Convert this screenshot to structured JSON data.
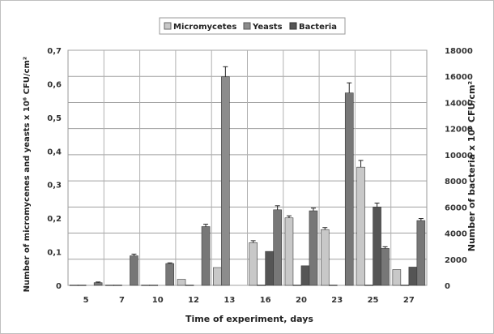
{
  "chart_data": {
    "type": "bar",
    "categories": [
      "5",
      "7",
      "10",
      "12",
      "13",
      "16",
      "20",
      "23",
      "25",
      "27"
    ],
    "xlabel": "Time of experiment, days",
    "ylabel_left": "Number of micromycenes and yeasts x 10⁶ CFU/cm²",
    "ylabel_right": "Number of bacteria x 10⁶ CFU/cm²",
    "ylim_left": [
      0,
      0.7
    ],
    "ylim_right": [
      0,
      18000
    ],
    "yticks_left": [
      "0",
      "0,1",
      "0,2",
      "0,3",
      "0,4",
      "0,5",
      "0,6",
      "0,7"
    ],
    "yticks_right": [
      "0",
      "2000",
      "4000",
      "6000",
      "8000",
      "10000",
      "12000",
      "14000",
      "16000",
      "18000"
    ],
    "grid": true,
    "legend_position": "top-center",
    "series": [
      {
        "name": "Micromycetes",
        "axis": "left",
        "color": "#c8c8c8",
        "values": [
          0.001,
          0.001,
          0.001,
          0.018,
          0.053,
          0.127,
          0.201,
          0.166,
          0.352,
          0.047
        ],
        "errors": [
          0,
          0,
          0,
          0,
          0,
          0.006,
          0.006,
          0.006,
          0.02,
          0
        ]
      },
      {
        "name": "Yeasts",
        "axis": "left",
        "color": "#8c8c8c",
        "values": [
          0.001,
          0.001,
          0.001,
          0.001,
          0.621,
          0.001,
          0.001,
          0.001,
          0.001,
          0.001
        ],
        "errors": [
          0,
          0,
          0,
          0,
          0.03,
          0,
          0,
          0,
          0,
          0
        ]
      },
      {
        "name": "Bacteria",
        "axis": "right",
        "color": "#555555",
        "values": [
          0,
          0,
          0,
          0,
          0,
          2600,
          1500,
          0,
          6000,
          1400
        ],
        "errors": [
          0,
          0,
          0,
          0,
          0,
          0,
          0,
          0,
          300,
          0
        ]
      },
      {
        "name": "",
        "axis": "left",
        "color": "#777777",
        "values": [
          0.008,
          0.088,
          0.065,
          0.175,
          0,
          0.225,
          0.222,
          0.573,
          0.11,
          0.193
        ],
        "errors": [
          0.002,
          0.005,
          0.002,
          0.007,
          0,
          0.012,
          0.008,
          0.03,
          0.005,
          0.006
        ]
      }
    ]
  }
}
